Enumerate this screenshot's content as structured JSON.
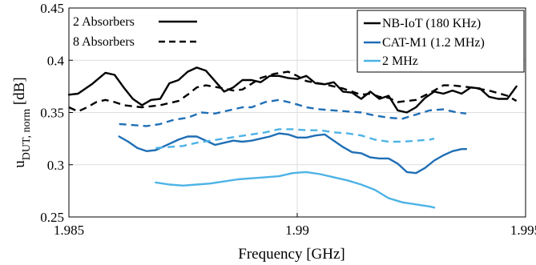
{
  "chart_data": {
    "type": "line",
    "xlabel": "Frequency [GHz]",
    "ylabel": {
      "main": "u",
      "sub": "DUT, norm",
      "unit": " [dB]"
    },
    "xlim": [
      1.985,
      1.995
    ],
    "ylim": [
      0.25,
      0.45
    ],
    "xticks": [
      "1.985",
      "1.99",
      "1.995"
    ],
    "xtick_values": [
      1.985,
      1.99,
      1.995
    ],
    "yticks": [
      "0.25",
      "0.3",
      "0.35",
      "0.4",
      "0.45"
    ],
    "ytick_values": [
      0.25,
      0.3,
      0.35,
      0.4,
      0.45
    ],
    "grid": true,
    "legends": {
      "absorbers": {
        "placement": "top-left",
        "entries": [
          {
            "label": "2 Absorbers",
            "dash": "solid"
          },
          {
            "label": "8 Absorbers",
            "dash": "dashed"
          }
        ]
      },
      "bandwidth": {
        "placement": "top-right",
        "entries": [
          {
            "label": "NB-IoT (180 KHz)",
            "color": "#000000"
          },
          {
            "label": "CAT-M1 (1.2 MHz)",
            "color": "#1f6fb5"
          },
          {
            "label": "2 MHz",
            "color": "#4db3e6"
          }
        ]
      }
    },
    "series": [
      {
        "bandwidth": "NB-IoT (180 KHz)",
        "absorbers": "2 Absorbers",
        "color": "#000000",
        "dash": "solid",
        "points": [
          [
            1.985,
            0.367
          ],
          [
            1.9852,
            0.368
          ],
          [
            1.9855,
            0.377
          ],
          [
            1.9858,
            0.388
          ],
          [
            1.986,
            0.386
          ],
          [
            1.9862,
            0.374
          ],
          [
            1.9864,
            0.363
          ],
          [
            1.9866,
            0.357
          ],
          [
            1.9868,
            0.362
          ],
          [
            1.987,
            0.363
          ],
          [
            1.9872,
            0.378
          ],
          [
            1.9874,
            0.381
          ],
          [
            1.9876,
            0.389
          ],
          [
            1.9878,
            0.393
          ],
          [
            1.988,
            0.39
          ],
          [
            1.9882,
            0.38
          ],
          [
            1.9884,
            0.37
          ],
          [
            1.9886,
            0.374
          ],
          [
            1.9888,
            0.381
          ],
          [
            1.989,
            0.381
          ],
          [
            1.9892,
            0.379
          ],
          [
            1.9894,
            0.385
          ],
          [
            1.9896,
            0.385
          ],
          [
            1.9898,
            0.383
          ],
          [
            1.99,
            0.382
          ],
          [
            1.9902,
            0.385
          ],
          [
            1.9904,
            0.378
          ],
          [
            1.9906,
            0.377
          ],
          [
            1.9908,
            0.379
          ],
          [
            1.991,
            0.37
          ],
          [
            1.9912,
            0.369
          ],
          [
            1.9914,
            0.363
          ],
          [
            1.9916,
            0.37
          ],
          [
            1.9918,
            0.363
          ],
          [
            1.992,
            0.366
          ],
          [
            1.9922,
            0.352
          ],
          [
            1.9924,
            0.35
          ],
          [
            1.9926,
            0.355
          ],
          [
            1.9928,
            0.364
          ],
          [
            1.993,
            0.37
          ],
          [
            1.9932,
            0.368
          ],
          [
            1.9934,
            0.371
          ],
          [
            1.9936,
            0.368
          ],
          [
            1.9938,
            0.374
          ],
          [
            1.994,
            0.373
          ],
          [
            1.9942,
            0.365
          ],
          [
            1.9944,
            0.363
          ],
          [
            1.9946,
            0.363
          ],
          [
            1.9948,
            0.375
          ]
        ]
      },
      {
        "bandwidth": "NB-IoT (180 KHz)",
        "absorbers": "8 Absorbers",
        "color": "#000000",
        "dash": "dashed",
        "points": [
          [
            1.985,
            0.355
          ],
          [
            1.9852,
            0.351
          ],
          [
            1.9854,
            0.355
          ],
          [
            1.9856,
            0.36
          ],
          [
            1.9858,
            0.362
          ],
          [
            1.986,
            0.36
          ],
          [
            1.9862,
            0.357
          ],
          [
            1.9866,
            0.355
          ],
          [
            1.987,
            0.357
          ],
          [
            1.9874,
            0.361
          ],
          [
            1.9876,
            0.367
          ],
          [
            1.9878,
            0.374
          ],
          [
            1.988,
            0.376
          ],
          [
            1.9884,
            0.373
          ],
          [
            1.9886,
            0.371
          ],
          [
            1.9888,
            0.372
          ],
          [
            1.9892,
            0.383
          ],
          [
            1.9895,
            0.387
          ],
          [
            1.9898,
            0.389
          ],
          [
            1.99,
            0.385
          ],
          [
            1.9902,
            0.38
          ],
          [
            1.9906,
            0.377
          ],
          [
            1.9908,
            0.375
          ],
          [
            1.991,
            0.373
          ],
          [
            1.9914,
            0.367
          ],
          [
            1.9916,
            0.368
          ],
          [
            1.9918,
            0.365
          ],
          [
            1.992,
            0.364
          ],
          [
            1.9922,
            0.36
          ],
          [
            1.9926,
            0.362
          ],
          [
            1.993,
            0.371
          ],
          [
            1.9932,
            0.376
          ],
          [
            1.9934,
            0.376
          ],
          [
            1.9938,
            0.374
          ],
          [
            1.9942,
            0.371
          ],
          [
            1.9946,
            0.366
          ],
          [
            1.9948,
            0.361
          ]
        ]
      },
      {
        "bandwidth": "CAT-M1 (1.2 MHz)",
        "absorbers": "2 Absorbers",
        "color": "#1f6fb5",
        "dash": "solid",
        "points": [
          [
            1.9861,
            0.327
          ],
          [
            1.9863,
            0.322
          ],
          [
            1.9865,
            0.316
          ],
          [
            1.9867,
            0.313
          ],
          [
            1.9869,
            0.314
          ],
          [
            1.9871,
            0.318
          ],
          [
            1.9874,
            0.324
          ],
          [
            1.9876,
            0.327
          ],
          [
            1.9878,
            0.327
          ],
          [
            1.988,
            0.323
          ],
          [
            1.9882,
            0.319
          ],
          [
            1.9884,
            0.321
          ],
          [
            1.9886,
            0.323
          ],
          [
            1.9888,
            0.322
          ],
          [
            1.989,
            0.323
          ],
          [
            1.9892,
            0.325
          ],
          [
            1.9894,
            0.327
          ],
          [
            1.9896,
            0.33
          ],
          [
            1.9898,
            0.329
          ],
          [
            1.99,
            0.326
          ],
          [
            1.9902,
            0.326
          ],
          [
            1.9904,
            0.328
          ],
          [
            1.9906,
            0.329
          ],
          [
            1.9908,
            0.323
          ],
          [
            1.991,
            0.317
          ],
          [
            1.9912,
            0.312
          ],
          [
            1.9914,
            0.311
          ],
          [
            1.9916,
            0.307
          ],
          [
            1.9918,
            0.306
          ],
          [
            1.992,
            0.306
          ],
          [
            1.9922,
            0.301
          ],
          [
            1.9924,
            0.293
          ],
          [
            1.9926,
            0.292
          ],
          [
            1.9928,
            0.297
          ],
          [
            1.993,
            0.304
          ],
          [
            1.9932,
            0.309
          ],
          [
            1.9934,
            0.313
          ],
          [
            1.9936,
            0.315
          ],
          [
            1.9937,
            0.315
          ]
        ]
      },
      {
        "bandwidth": "CAT-M1 (1.2 MHz)",
        "absorbers": "8 Absorbers",
        "color": "#1f6fb5",
        "dash": "dashed",
        "points": [
          [
            1.9861,
            0.339
          ],
          [
            1.9864,
            0.338
          ],
          [
            1.9867,
            0.337
          ],
          [
            1.987,
            0.339
          ],
          [
            1.9873,
            0.343
          ],
          [
            1.9876,
            0.345
          ],
          [
            1.9879,
            0.35
          ],
          [
            1.9882,
            0.349
          ],
          [
            1.9885,
            0.352
          ],
          [
            1.9888,
            0.355
          ],
          [
            1.989,
            0.355
          ],
          [
            1.9893,
            0.36
          ],
          [
            1.9896,
            0.362
          ],
          [
            1.9899,
            0.359
          ],
          [
            1.9902,
            0.355
          ],
          [
            1.9905,
            0.353
          ],
          [
            1.9908,
            0.352
          ],
          [
            1.9911,
            0.351
          ],
          [
            1.9914,
            0.35
          ],
          [
            1.9917,
            0.347
          ],
          [
            1.992,
            0.345
          ],
          [
            1.9923,
            0.344
          ],
          [
            1.9926,
            0.348
          ],
          [
            1.9929,
            0.352
          ],
          [
            1.9932,
            0.353
          ],
          [
            1.9935,
            0.35
          ],
          [
            1.9937,
            0.349
          ]
        ]
      },
      {
        "bandwidth": "2 MHz",
        "absorbers": "2 Absorbers",
        "color": "#4db3e6",
        "dash": "solid",
        "points": [
          [
            1.9869,
            0.283
          ],
          [
            1.9872,
            0.281
          ],
          [
            1.9875,
            0.28
          ],
          [
            1.9878,
            0.281
          ],
          [
            1.9881,
            0.282
          ],
          [
            1.9884,
            0.284
          ],
          [
            1.9887,
            0.286
          ],
          [
            1.989,
            0.287
          ],
          [
            1.9893,
            0.288
          ],
          [
            1.9896,
            0.289
          ],
          [
            1.9899,
            0.292
          ],
          [
            1.9902,
            0.293
          ],
          [
            1.9905,
            0.291
          ],
          [
            1.9908,
            0.288
          ],
          [
            1.9911,
            0.285
          ],
          [
            1.9914,
            0.281
          ],
          [
            1.9917,
            0.276
          ],
          [
            1.992,
            0.268
          ],
          [
            1.9923,
            0.264
          ],
          [
            1.9926,
            0.262
          ],
          [
            1.9929,
            0.26
          ],
          [
            1.993,
            0.259
          ]
        ]
      },
      {
        "bandwidth": "2 MHz",
        "absorbers": "8 Absorbers",
        "color": "#4db3e6",
        "dash": "dashed",
        "points": [
          [
            1.9869,
            0.316
          ],
          [
            1.9872,
            0.317
          ],
          [
            1.9875,
            0.318
          ],
          [
            1.9878,
            0.321
          ],
          [
            1.9881,
            0.323
          ],
          [
            1.9884,
            0.325
          ],
          [
            1.9887,
            0.327
          ],
          [
            1.989,
            0.329
          ],
          [
            1.9893,
            0.331
          ],
          [
            1.9896,
            0.334
          ],
          [
            1.9899,
            0.334
          ],
          [
            1.9902,
            0.333
          ],
          [
            1.9905,
            0.333
          ],
          [
            1.9908,
            0.331
          ],
          [
            1.9911,
            0.33
          ],
          [
            1.9914,
            0.328
          ],
          [
            1.9917,
            0.324
          ],
          [
            1.992,
            0.322
          ],
          [
            1.9923,
            0.322
          ],
          [
            1.9926,
            0.323
          ],
          [
            1.9929,
            0.324
          ],
          [
            1.993,
            0.325
          ]
        ]
      }
    ]
  }
}
